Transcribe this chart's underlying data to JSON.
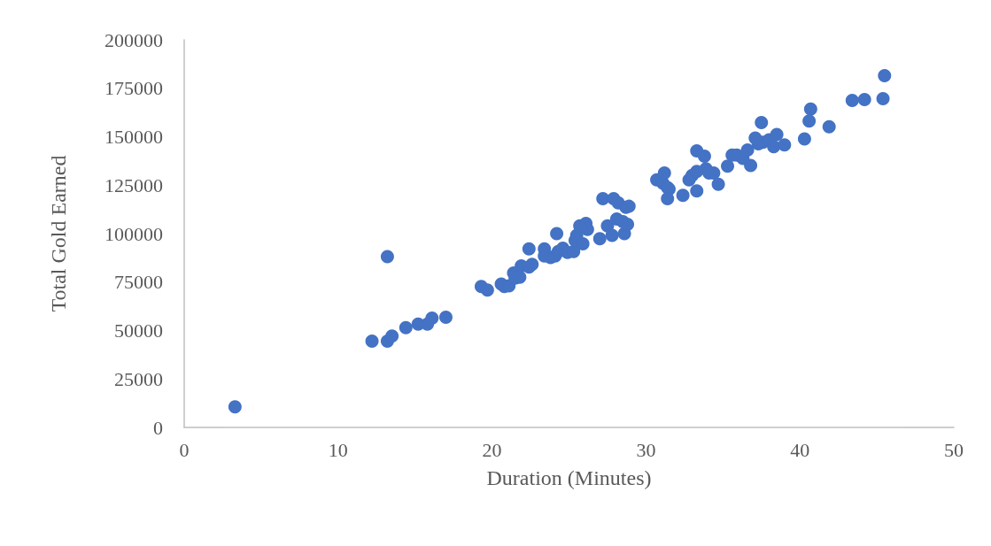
{
  "chart_data": {
    "type": "scatter",
    "xlabel": "Duration (Minutes)",
    "ylabel": "Total Gold Earned",
    "xlim": [
      0,
      50
    ],
    "xticks": [
      0,
      10,
      20,
      30,
      40,
      50
    ],
    "ylim": [
      0,
      200000
    ],
    "yticks": [
      0,
      25000,
      50000,
      75000,
      100000,
      125000,
      150000,
      175000,
      200000
    ],
    "grid": false,
    "marker": "circle",
    "series": [
      {
        "color": "#4472c4",
        "x": [
          3.3,
          13.2,
          12.2,
          13.2,
          13.5,
          14.4,
          15.2,
          15.8,
          16.1,
          17.0,
          19.3,
          19.7,
          20.6,
          20.8,
          21.1,
          21.4,
          21.5,
          21.8,
          21.9,
          22.4,
          22.4,
          22.6,
          23.4,
          23.4,
          23.8,
          24.1,
          24.2,
          24.3,
          24.6,
          24.9,
          25.3,
          25.4,
          25.5,
          25.7,
          25.9,
          26.1,
          26.2,
          27.0,
          27.2,
          27.5,
          27.8,
          27.9,
          28.1,
          28.2,
          28.5,
          28.6,
          28.7,
          28.9,
          28.8,
          30.7,
          31.1,
          31.2,
          31.4,
          31.5,
          31.4,
          32.4,
          32.8,
          33.0,
          33.3,
          33.3,
          33.3,
          33.8,
          33.9,
          34.1,
          34.4,
          34.7,
          35.3,
          35.6,
          35.9,
          36.3,
          36.6,
          36.8,
          37.1,
          37.3,
          37.5,
          37.6,
          38.0,
          38.3,
          38.5,
          39.0,
          40.3,
          40.6,
          40.7,
          41.9,
          43.4,
          44.2,
          45.4,
          45.5
        ],
        "values": [
          10600,
          88100,
          44500,
          44500,
          47100,
          51500,
          53300,
          53300,
          56400,
          56800,
          72700,
          70900,
          74000,
          72700,
          73100,
          79700,
          77100,
          77500,
          83300,
          92100,
          82800,
          84100,
          92100,
          88500,
          87700,
          88500,
          100000,
          90700,
          92500,
          90300,
          90700,
          96500,
          99100,
          104000,
          94700,
          105300,
          102200,
          97400,
          118000,
          104000,
          99100,
          118000,
          107500,
          115900,
          106200,
          100000,
          113600,
          114100,
          104800,
          127700,
          126000,
          131300,
          123800,
          122900,
          118000,
          119800,
          127700,
          130000,
          142700,
          132100,
          122000,
          140000,
          133500,
          131300,
          131300,
          125500,
          134800,
          140500,
          140500,
          138800,
          143200,
          135200,
          149300,
          146300,
          157300,
          147100,
          148400,
          144900,
          151100,
          145800,
          148900,
          158100,
          164300,
          155100,
          168700,
          169200,
          169600,
          181500
        ]
      }
    ]
  }
}
